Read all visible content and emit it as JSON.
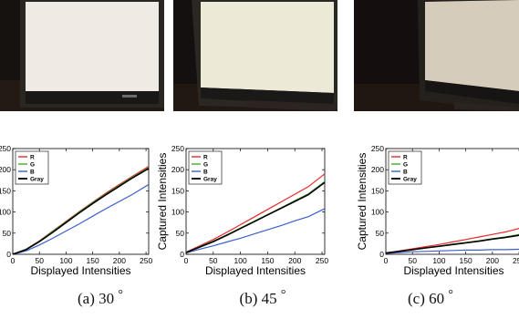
{
  "captions": [
    {
      "letter": "(a)",
      "angle": "30",
      "degree": "°"
    },
    {
      "letter": "(b)",
      "angle": "45",
      "degree": "°"
    },
    {
      "letter": "(c)",
      "angle": "60",
      "degree": "°"
    }
  ],
  "colors": {
    "R": "#e8272b",
    "G": "#3fae2a",
    "B": "#3a5fcd",
    "Gray": "#000000"
  },
  "chart_data": [
    {
      "type": "line",
      "xlabel": "Displayed Intensities",
      "ylabel": "",
      "xlim": [
        0,
        255
      ],
      "ylim": [
        0,
        250
      ],
      "xticks": [
        0,
        50,
        100,
        150,
        200,
        250
      ],
      "yticks": [
        0,
        50,
        100,
        150,
        200,
        250
      ],
      "legend": "top-left",
      "series": [
        {
          "name": "R",
          "color": "#e8272b",
          "x": [
            0,
            25,
            50,
            75,
            100,
            125,
            150,
            175,
            200,
            225,
            255
          ],
          "y": [
            0,
            12,
            32,
            55,
            78,
            101,
            123,
            145,
            165,
            185,
            208
          ]
        },
        {
          "name": "G",
          "color": "#3fae2a",
          "x": [
            0,
            25,
            50,
            75,
            100,
            125,
            150,
            175,
            200,
            225,
            255
          ],
          "y": [
            0,
            12,
            31,
            54,
            77,
            100,
            122,
            143,
            163,
            183,
            205
          ]
        },
        {
          "name": "B",
          "color": "#3a5fcd",
          "x": [
            0,
            25,
            50,
            75,
            100,
            125,
            150,
            175,
            200,
            225,
            255
          ],
          "y": [
            0,
            8,
            22,
            38,
            55,
            72,
            90,
            108,
            125,
            142,
            165
          ]
        },
        {
          "name": "Gray",
          "color": "#000000",
          "x": [
            0,
            25,
            50,
            75,
            100,
            125,
            150,
            175,
            200,
            225,
            255
          ],
          "y": [
            0,
            11,
            30,
            52,
            75,
            98,
            120,
            141,
            161,
            181,
            203
          ]
        }
      ]
    },
    {
      "type": "line",
      "xlabel": "Displayed Intensities",
      "ylabel": "Captured Intensities",
      "xlim": [
        0,
        255
      ],
      "ylim": [
        0,
        250
      ],
      "xticks": [
        0,
        50,
        100,
        150,
        200,
        250
      ],
      "yticks": [
        0,
        50,
        100,
        150,
        200,
        250
      ],
      "legend": "top-left",
      "series": [
        {
          "name": "R",
          "color": "#e8272b",
          "x": [
            0,
            25,
            50,
            75,
            100,
            125,
            150,
            175,
            200,
            225,
            255
          ],
          "y": [
            5,
            20,
            35,
            52,
            70,
            88,
            106,
            124,
            142,
            160,
            190
          ]
        },
        {
          "name": "G",
          "color": "#3fae2a",
          "x": [
            0,
            25,
            50,
            75,
            100,
            125,
            150,
            175,
            200,
            225,
            255
          ],
          "y": [
            4,
            18,
            31,
            46,
            62,
            78,
            94,
            110,
            127,
            143,
            172
          ]
        },
        {
          "name": "B",
          "color": "#3a5fcd",
          "x": [
            0,
            25,
            50,
            75,
            100,
            125,
            150,
            175,
            200,
            225,
            255
          ],
          "y": [
            3,
            12,
            20,
            29,
            38,
            48,
            58,
            68,
            79,
            89,
            108
          ]
        },
        {
          "name": "Gray",
          "color": "#000000",
          "x": [
            0,
            25,
            50,
            75,
            100,
            125,
            150,
            175,
            200,
            225,
            255
          ],
          "y": [
            4,
            17,
            30,
            45,
            61,
            77,
            93,
            109,
            125,
            141,
            170
          ]
        }
      ]
    },
    {
      "type": "line",
      "xlabel": "Displayed Intensities",
      "ylabel": "Captured Intensities",
      "xlim": [
        0,
        255
      ],
      "ylim": [
        0,
        250
      ],
      "xticks": [
        0,
        50,
        100,
        150,
        200,
        250
      ],
      "yticks": [
        0,
        50,
        100,
        150,
        200,
        250
      ],
      "legend": "top-left",
      "series": [
        {
          "name": "R",
          "color": "#e8272b",
          "x": [
            0,
            25,
            50,
            75,
            100,
            125,
            150,
            175,
            200,
            225,
            255
          ],
          "y": [
            3,
            8,
            13,
            18,
            23,
            29,
            35,
            41,
            47,
            53,
            63
          ]
        },
        {
          "name": "G",
          "color": "#3fae2a",
          "x": [
            0,
            25,
            50,
            75,
            100,
            125,
            150,
            175,
            200,
            225,
            255
          ],
          "y": [
            3,
            7,
            11,
            15,
            19,
            24,
            28,
            32,
            37,
            41,
            48
          ]
        },
        {
          "name": "B",
          "color": "#3a5fcd",
          "x": [
            0,
            25,
            50,
            75,
            100,
            125,
            150,
            175,
            200,
            225,
            255
          ],
          "y": [
            2,
            4,
            6,
            7,
            8,
            9,
            10,
            10,
            11,
            11,
            12
          ]
        },
        {
          "name": "Gray",
          "color": "#000000",
          "x": [
            0,
            25,
            50,
            75,
            100,
            125,
            150,
            175,
            200,
            225,
            255
          ],
          "y": [
            3,
            7,
            11,
            15,
            19,
            23,
            27,
            31,
            36,
            40,
            46
          ]
        }
      ]
    }
  ]
}
